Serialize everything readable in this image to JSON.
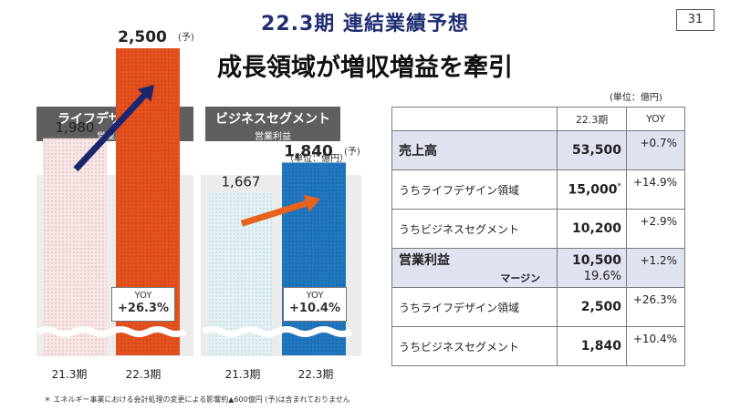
{
  "page_number": "31",
  "title": "22.3期 連結業績予想",
  "subtitle": "成長領域が増収増益を牽引",
  "left_panel": {
    "name": "ライフデザイン領域",
    "metric": "営業利益",
    "unit": "（単位：億円）"
  },
  "right_panel": {
    "name": "ビジネスセグメント",
    "metric": "営業利益",
    "unit": "（単位：億円）"
  },
  "chart_data": [
    {
      "type": "bar",
      "title": "ライフデザイン領域",
      "subtitle": "営業利益",
      "unit": "（単位：億円）",
      "categories": [
        "21.3期",
        "22.3期"
      ],
      "values": [
        1980,
        2500
      ],
      "value_labels": [
        "1,980",
        "2,500"
      ],
      "forecast_mark": "(予)",
      "yoy_label": "YOY",
      "yoy_value": "+26.3%",
      "axis_break": true,
      "colors": {
        "prior": "#f3dcdc",
        "forecast": "#e04a1e",
        "arrow": "#1b2670"
      }
    },
    {
      "type": "bar",
      "title": "ビジネスセグメント",
      "subtitle": "営業利益",
      "unit": "（単位：億円）",
      "categories": [
        "21.3期",
        "22.3期"
      ],
      "values": [
        1667,
        1840
      ],
      "value_labels": [
        "1,667",
        "1,840"
      ],
      "forecast_mark": "(予)",
      "yoy_label": "YOY",
      "yoy_value": "+10.4%",
      "axis_break": true,
      "colors": {
        "prior": "#d8ecef",
        "forecast": "#1c6fb8",
        "arrow": "#e8621e"
      }
    }
  ],
  "table": {
    "unit": "(単位：億円)",
    "headers": [
      "",
      "22.3期",
      "YOY"
    ],
    "rows": [
      {
        "label": "売上高",
        "value": "53,500",
        "yoy": "+0.7%",
        "highlight": true
      },
      {
        "label": "うちライフデザイン領域",
        "value": "15,000",
        "value_mark": "*",
        "yoy": "+14.9%",
        "highlight": false
      },
      {
        "label": "うちビジネスセグメント",
        "value": "10,200",
        "yoy": "+2.9%",
        "highlight": false
      },
      {
        "label": "営業利益",
        "sublabel": "マージン",
        "value": "10,500",
        "subvalue": "19.6%",
        "yoy": "+1.2%",
        "highlight": true
      },
      {
        "label": "うちライフデザイン領域",
        "value": "2,500",
        "yoy": "+26.3%",
        "highlight": false
      },
      {
        "label": "うちビジネスセグメント",
        "value": "1,840",
        "yoy": "+10.4%",
        "highlight": false
      }
    ]
  },
  "footnote": "＊ エネルギー事業における会計処理の変更による影響約▲600億円 (予)は含まれておりません"
}
